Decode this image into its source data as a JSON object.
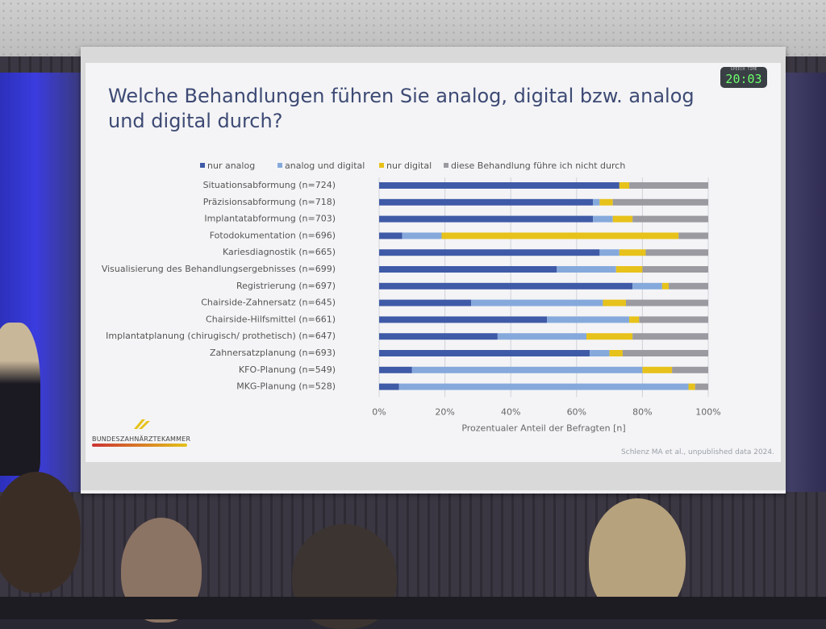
{
  "slide": {
    "title_line1": "Welche Behandlungen führen Sie analog, digital bzw. analog",
    "title_line2": "und digital durch?",
    "timer_caption": "SPEECH TIME",
    "timer": "20:03",
    "logo_text": "BUNDESZAHNÄRZTEKAMMER",
    "citation": "Schlenz MA et al., unpublished data 2024."
  },
  "colors": {
    "nur_analog": "#3f5aa7",
    "analog_und_digital": "#86a9dc",
    "nur_digital": "#e7c21b",
    "nicht_durch": "#9b9aa1"
  },
  "chart_data": {
    "type": "bar",
    "orientation": "horizontal",
    "stacked": true,
    "xlabel": "Prozentualer Anteil der Befragten [n]",
    "xlim": [
      0,
      100
    ],
    "xticks": [
      "0%",
      "20%",
      "40%",
      "60%",
      "80%",
      "100%"
    ],
    "legend_position": "top",
    "categories": [
      "Situationsabformung (n=724)",
      "Präzisionsabformung (n=718)",
      "Implantatabformung (n=703)",
      "Fotodokumentation (n=696)",
      "Kariesdiagnostik (n=665)",
      "Visualisierung des Behandlungsergebnisses (n=699)",
      "Registrierung (n=697)",
      "Chairside-Zahnersatz (n=645)",
      "Chairside-Hilfsmittel (n=661)",
      "Implantatplanung (chirugisch/ prothetisch) (n=647)",
      "Zahnersatzplanung (n=693)",
      "KFO-Planung (n=549)",
      "MKG-Planung (n=528)"
    ],
    "series": [
      {
        "name": "nur analog",
        "color": "#3f5aa7",
        "values": [
          73,
          65,
          65,
          7,
          67,
          54,
          77,
          28,
          51,
          36,
          64,
          10,
          6
        ]
      },
      {
        "name": "analog und digital",
        "color": "#86a9dc",
        "values": [
          0,
          2,
          6,
          12,
          6,
          18,
          9,
          40,
          25,
          27,
          6,
          70,
          88
        ]
      },
      {
        "name": "nur digital",
        "color": "#e7c21b",
        "values": [
          3,
          4,
          6,
          72,
          8,
          8,
          2,
          7,
          3,
          14,
          4,
          9,
          2
        ]
      },
      {
        "name": "diese Behandlung führe ich nicht durch",
        "color": "#9b9aa1",
        "values": [
          24,
          29,
          23,
          9,
          19,
          20,
          12,
          25,
          21,
          23,
          26,
          11,
          4
        ]
      }
    ]
  }
}
